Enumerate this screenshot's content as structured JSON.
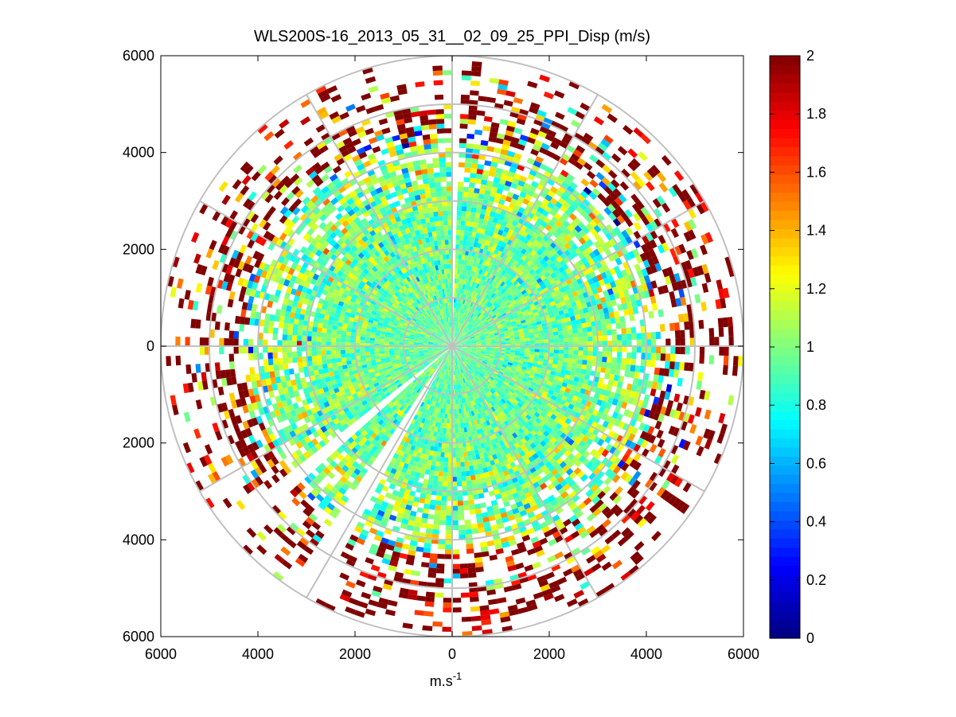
{
  "chart_data": {
    "type": "heatmap",
    "subtype": "polar-ppi-scan",
    "title": "WLS200S-16_2013_05_31__02_09_25_PPI_Disp (m/s)",
    "xlabel": "m.s",
    "xlabel_superscript": "-1",
    "ylabel": "",
    "xlim": [
      -6000,
      6000
    ],
    "ylim": [
      -6000,
      6000
    ],
    "x_ticks": [
      -6000,
      -4000,
      -2000,
      0,
      2000,
      4000,
      6000
    ],
    "x_tick_labels": [
      "6000",
      "4000",
      "2000",
      "0",
      "2000",
      "4000",
      "6000"
    ],
    "y_ticks": [
      6000,
      4000,
      2000,
      0,
      -2000,
      -4000,
      -6000
    ],
    "y_tick_labels": [
      "6000",
      "4000",
      "2000",
      "0",
      "2000",
      "4000",
      "6000"
    ],
    "polar_grid_ranges": [
      1000,
      2000,
      3000,
      4000,
      5000,
      6000
    ],
    "polar_grid_angles_deg": [
      0,
      30,
      60,
      90,
      120,
      150,
      180,
      210,
      240,
      270,
      300,
      330
    ],
    "max_range": 6000,
    "range_gate_size": 100,
    "beam_width_deg": 2,
    "colorbar": {
      "min": 0,
      "max": 2,
      "ticks": [
        0,
        0.2,
        0.4,
        0.6,
        0.8,
        1,
        1.2,
        1.4,
        1.6,
        1.8,
        2
      ],
      "tick_labels": [
        "0",
        "0.2",
        "0.4",
        "0.6",
        "0.8",
        "1",
        "1.2",
        "1.4",
        "1.6",
        "1.8",
        "2"
      ],
      "colormap": "jet"
    },
    "value_distribution": {
      "near_range_mean": 0.95,
      "mid_range_mean": 1.05,
      "far_range_mean": 1.85,
      "data_coverage_near": 1.0,
      "data_coverage_far": 0.18
    },
    "no_data_sectors_deg": [
      {
        "from": 0,
        "to": 1.5,
        "label": "north gap"
      },
      {
        "from": 208,
        "to": 213,
        "label": "south-west blind sector"
      },
      {
        "from": 228,
        "to": 232,
        "label": "south-west blind sector"
      }
    ]
  }
}
